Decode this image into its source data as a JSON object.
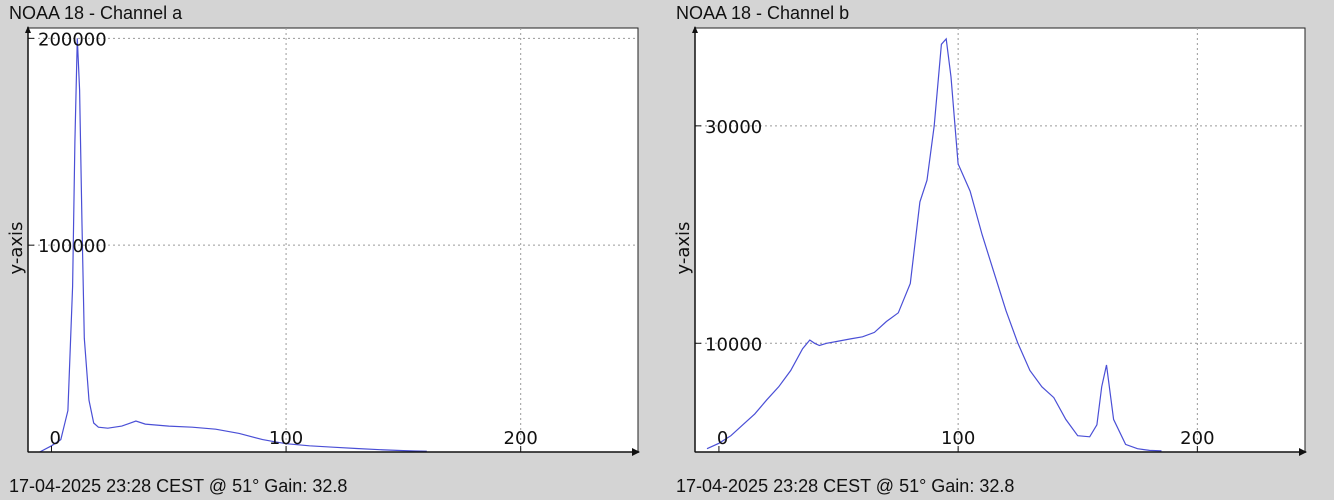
{
  "colors": {
    "background": "#d4d4d4",
    "plot_bg": "#ffffff",
    "line": "#4a4fd6",
    "grid": "#9a9a9a"
  },
  "chart_data": [
    {
      "type": "line",
      "title": "NOAA 18 - Channel a",
      "ylabel": "y-axis",
      "footer": "17-04-2025 23:28 CEST @ 51° Gain: 32.8",
      "xlim": [
        -10,
        250
      ],
      "ylim": [
        0,
        205000
      ],
      "xticks": [
        0,
        100,
        200
      ],
      "yticks": [
        100000,
        200000
      ],
      "xtick_labels": [
        "0",
        "100",
        "200"
      ],
      "ytick_labels": [
        "100000",
        "200000"
      ],
      "grid": true,
      "series": [
        {
          "x": [
            -5,
            0,
            4,
            7,
            9,
            10,
            11,
            12,
            13,
            14,
            16,
            18,
            20,
            24,
            30,
            36,
            40,
            50,
            60,
            70,
            80,
            90,
            95,
            100,
            110,
            120,
            130,
            140,
            150,
            155,
            160
          ],
          "y": [
            0,
            3000,
            6000,
            20000,
            80000,
            150000,
            200000,
            175000,
            110000,
            55000,
            25000,
            14000,
            12000,
            11500,
            12500,
            15000,
            13500,
            12500,
            12000,
            11000,
            9000,
            6000,
            5000,
            4000,
            3000,
            2300,
            1700,
            1100,
            700,
            500,
            400
          ]
        }
      ]
    },
    {
      "type": "line",
      "title": "NOAA 18 - Channel b",
      "ylabel": "y-axis",
      "footer": "17-04-2025 23:28 CEST @ 51° Gain: 32.8",
      "xlim": [
        -10,
        245
      ],
      "ylim": [
        0,
        39000
      ],
      "xticks": [
        0,
        100,
        200
      ],
      "yticks": [
        10000,
        30000
      ],
      "xtick_labels": [
        "0",
        "100",
        "200"
      ],
      "ytick_labels": [
        "10000",
        "30000"
      ],
      "grid": true,
      "series": [
        {
          "x": [
            -5,
            0,
            5,
            10,
            15,
            20,
            25,
            30,
            35,
            38,
            40,
            42,
            45,
            50,
            55,
            60,
            65,
            70,
            75,
            80,
            84,
            87,
            90,
            93,
            95,
            97,
            100,
            105,
            110,
            115,
            120,
            125,
            130,
            135,
            140,
            145,
            150,
            155,
            158,
            160,
            162,
            165,
            170,
            175,
            180,
            185
          ],
          "y": [
            300,
            800,
            1500,
            2500,
            3500,
            4800,
            6000,
            7500,
            9500,
            10300,
            10000,
            9800,
            10000,
            10200,
            10400,
            10600,
            11000,
            12000,
            12800,
            15500,
            23000,
            25000,
            30000,
            37500,
            38000,
            34500,
            26500,
            24000,
            20000,
            16500,
            13000,
            10000,
            7500,
            6000,
            5000,
            3000,
            1500,
            1400,
            2500,
            6000,
            8000,
            3000,
            700,
            300,
            150,
            100
          ]
        }
      ]
    }
  ]
}
